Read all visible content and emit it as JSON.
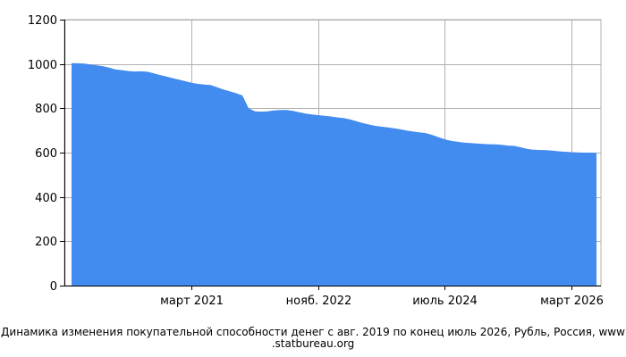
{
  "chart_data": {
    "type": "area",
    "title": "",
    "xlabel": "",
    "ylabel": "",
    "ylim": [
      0,
      1200
    ],
    "yticks": [
      0,
      200,
      400,
      600,
      800,
      1000,
      1200
    ],
    "xlim": [
      "2019-08",
      "2026-07"
    ],
    "xticks": [
      {
        "date": "2021-03",
        "label": "март 2021"
      },
      {
        "date": "2022-11",
        "label": "нояб. 2022"
      },
      {
        "date": "2024-07",
        "label": "июль 2024"
      },
      {
        "date": "2026-03",
        "label": "март 2026"
      }
    ],
    "grid": true,
    "color": "#428bef",
    "x": [
      "2019-08",
      "2019-09",
      "2019-10",
      "2019-11",
      "2019-12",
      "2020-01",
      "2020-02",
      "2020-03",
      "2020-04",
      "2020-05",
      "2020-06",
      "2020-07",
      "2020-08",
      "2020-09",
      "2020-10",
      "2020-11",
      "2020-12",
      "2021-01",
      "2021-02",
      "2021-03",
      "2021-04",
      "2021-05",
      "2021-06",
      "2021-07",
      "2021-08",
      "2021-09",
      "2021-10",
      "2021-11",
      "2021-12",
      "2022-01",
      "2022-02",
      "2022-03",
      "2022-04",
      "2022-05",
      "2022-06",
      "2022-07",
      "2022-08",
      "2022-09",
      "2022-10",
      "2022-11",
      "2022-12",
      "2023-01",
      "2023-02",
      "2023-03",
      "2023-04",
      "2023-05",
      "2023-06",
      "2023-07",
      "2023-08",
      "2023-09",
      "2023-10",
      "2023-11",
      "2023-12",
      "2024-01",
      "2024-02",
      "2024-03",
      "2024-04",
      "2024-05",
      "2024-06",
      "2024-07",
      "2024-08",
      "2024-09",
      "2024-10",
      "2024-11",
      "2024-12",
      "2025-01",
      "2025-02",
      "2025-03",
      "2025-04",
      "2025-05",
      "2025-06",
      "2025-07",
      "2025-08",
      "2025-09",
      "2025-10",
      "2025-11",
      "2025-12",
      "2026-01",
      "2026-02",
      "2026-03",
      "2026-04",
      "2026-05",
      "2026-06",
      "2026-07"
    ],
    "values": [
      1004,
      1003,
      1002,
      998,
      994,
      990,
      983,
      975,
      972,
      968,
      966,
      967,
      965,
      958,
      950,
      943,
      936,
      929,
      922,
      915,
      910,
      907,
      905,
      895,
      885,
      877,
      868,
      858,
      800,
      786,
      785,
      786,
      790,
      792,
      792,
      788,
      782,
      776,
      772,
      769,
      766,
      763,
      759,
      756,
      750,
      742,
      734,
      727,
      721,
      717,
      714,
      710,
      705,
      700,
      695,
      692,
      688,
      680,
      670,
      660,
      653,
      649,
      645,
      643,
      641,
      639,
      638,
      637,
      635,
      632,
      630,
      624,
      617,
      613,
      612,
      611,
      609,
      606,
      604,
      602,
      601,
      600,
      600,
      599
    ]
  },
  "caption": {
    "line1": "Динамика изменения покупательной способности денег с авг. 2019 по конец июль 2026, Рубль, Россия, www",
    "line2": ".statbureau.org"
  }
}
